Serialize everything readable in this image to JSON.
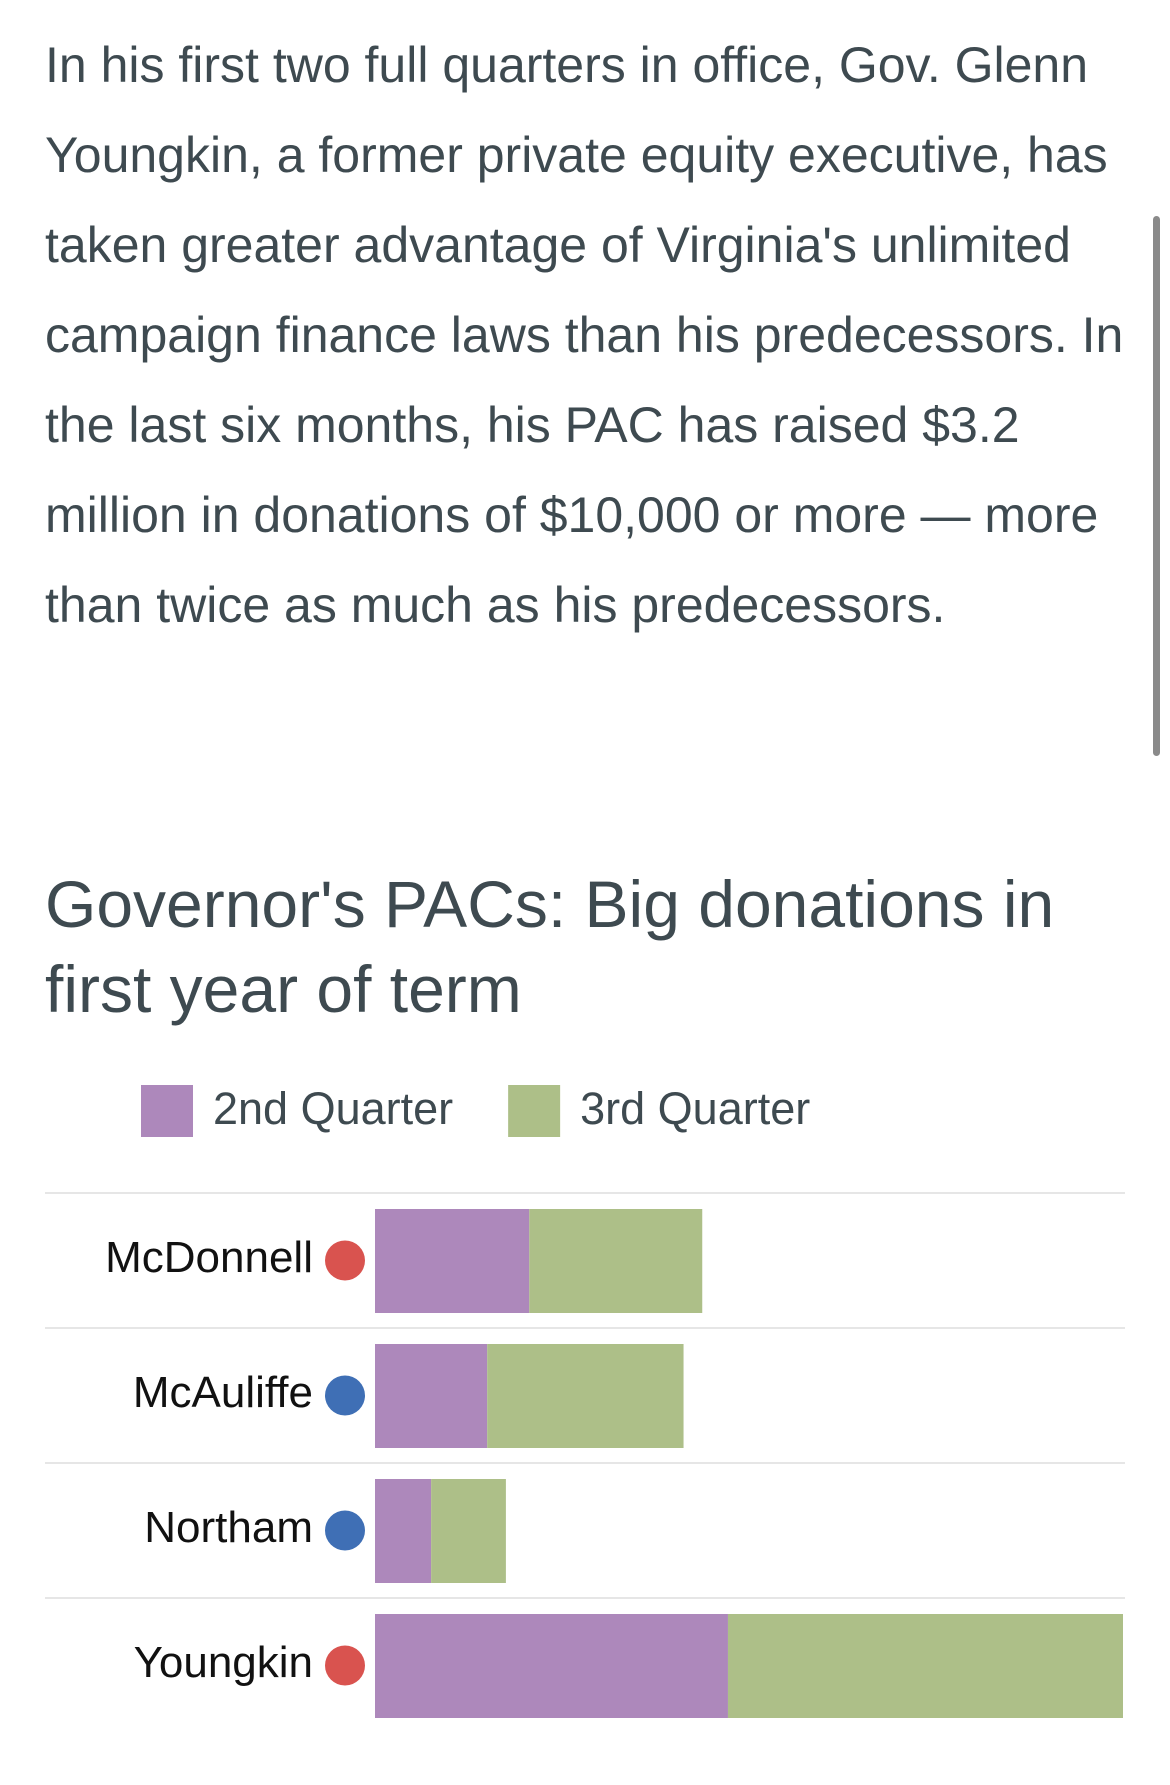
{
  "article": {
    "paragraph": "In his first two full quarters in office, Gov. Glenn Youngkin, a former private equity executive, has taken greater advantage of Virginia's unlimited campaign finance laws than his predecessors. In the last six months, his PAC has raised $3.2 million in donations of $10,000 or more — more than twice as much as his predecessors."
  },
  "chart_data": {
    "type": "bar",
    "orientation": "horizontal",
    "stacked": true,
    "title": "Governor's PACs: Big donations in first year of term",
    "categories": [
      "McDonnell",
      "McAuliffe",
      "Northam",
      "Youngkin"
    ],
    "dot_colors": [
      "#d9534f",
      "#3f6fb5",
      "#3f6fb5",
      "#d9534f"
    ],
    "series": [
      {
        "name": "2nd Quarter",
        "color": "#ad88bb",
        "values": [
          0.66,
          0.48,
          0.24,
          1.51
        ]
      },
      {
        "name": "3rd Quarter",
        "color": "#adbf88",
        "values": [
          0.74,
          0.84,
          0.32,
          1.69
        ]
      }
    ]
  }
}
